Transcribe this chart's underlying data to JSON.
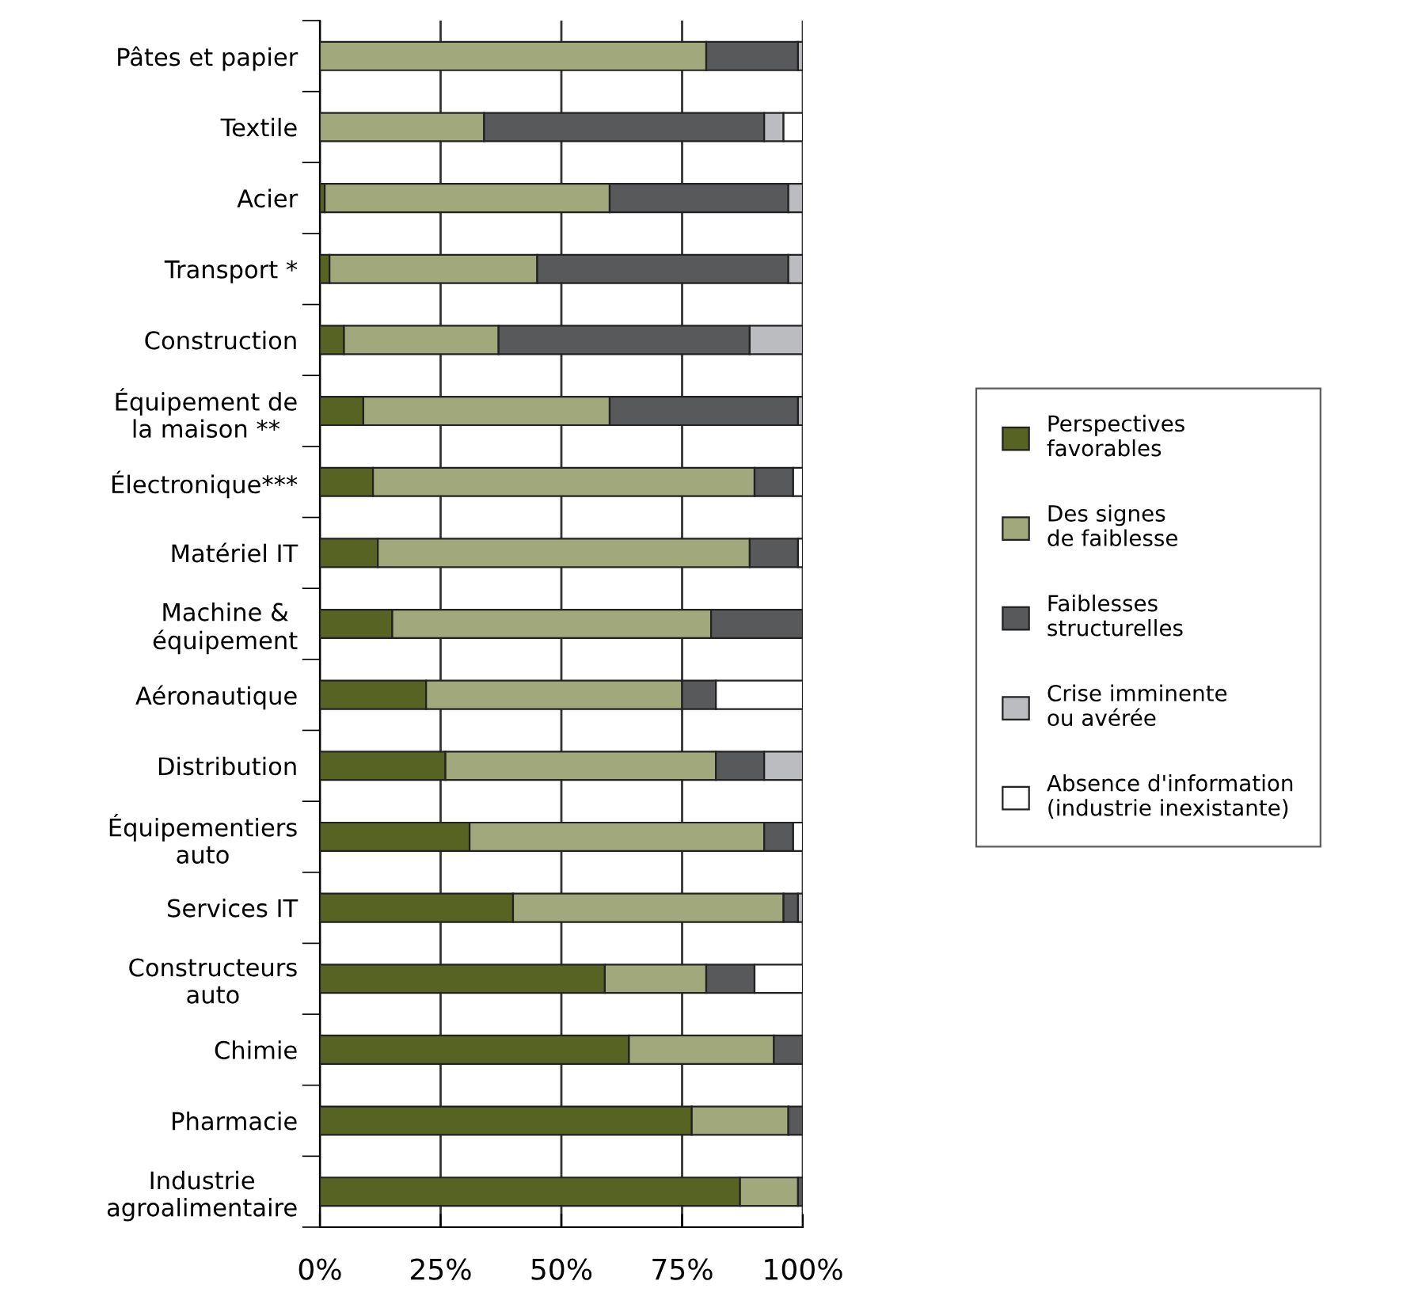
{
  "chart_data": {
    "type": "bar",
    "orientation": "horizontal",
    "stacked": true,
    "legend": "right",
    "grid": "x",
    "categories": [
      "Pâtes et papier",
      "Textile",
      "Acier",
      "Transport *",
      "Construction",
      "Équipement de\nla maison **",
      "Électronique***",
      "Matériel IT",
      "Machine &\néquipement",
      "Aéronautique",
      "Distribution",
      "Équipementiers\nauto",
      "Services IT",
      "Constructeurs\nauto",
      "Chimie",
      "Pharmacie",
      "Industrie\nagroalimentaire"
    ],
    "xlim": [
      0,
      100
    ],
    "xticks": [
      {
        "value": 0,
        "label": "0%"
      },
      {
        "value": 25,
        "label": "25%"
      },
      {
        "value": 50,
        "label": "50%"
      },
      {
        "value": 75,
        "label": "75%"
      },
      {
        "value": 100,
        "label": "100%"
      }
    ],
    "series": [
      {
        "name": "Perspectives\nfavorables",
        "color": "#566323",
        "values": [
          0,
          0,
          1,
          2,
          5,
          9,
          11,
          12,
          15,
          22,
          26,
          31,
          40,
          59,
          64,
          77,
          87
        ]
      },
      {
        "name": "Des signes\nde faiblesse",
        "color": "#a0a87c",
        "values": [
          80,
          34,
          59,
          43,
          32,
          51,
          79,
          77,
          66,
          53,
          56,
          61,
          56,
          21,
          30,
          20,
          12
        ]
      },
      {
        "name": "Faiblesses\nstructurelles",
        "color": "#58595b",
        "values": [
          19,
          58,
          37,
          52,
          52,
          39,
          8,
          10,
          19,
          7,
          10,
          6,
          3,
          10,
          6,
          3,
          1
        ]
      },
      {
        "name": "Crise imminente\nou avérée",
        "color": "#bbbcc0",
        "values": [
          1,
          4,
          3,
          3,
          11,
          1,
          0,
          0,
          0,
          0,
          8,
          0,
          1,
          0,
          0,
          0,
          0
        ]
      },
      {
        "name": "Absence d'information\n(industrie inexistante)",
        "color": "#ffffff",
        "values": [
          0,
          4,
          0,
          0,
          0,
          0,
          2,
          1,
          0,
          18,
          0,
          2,
          0,
          10,
          0,
          0,
          0
        ]
      }
    ]
  }
}
